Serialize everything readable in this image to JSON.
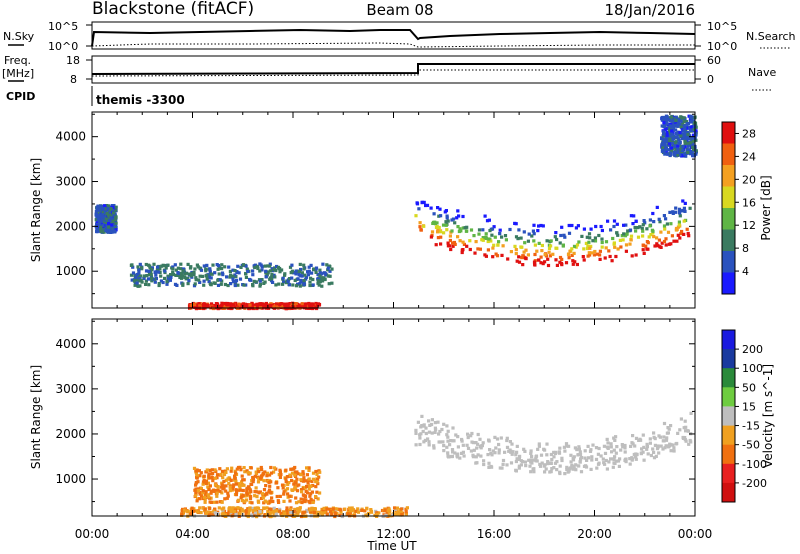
{
  "header": {
    "station": "Blackstone (fitACF)",
    "beam": "Beam 08",
    "date": "18/Jan/2016"
  },
  "ops_panel": {
    "nsky_label": "N.Sky",
    "nsearch_label": "N.Search",
    "noise_ticks": [
      "10^5",
      "10^0"
    ],
    "freq_label_1": "Freq.",
    "freq_label_2": "[MHz]",
    "freq_ticks": [
      "18",
      "8"
    ],
    "nave_label": "Nave",
    "nave_ticks": [
      "60",
      "0"
    ],
    "cpid_label": "CPID",
    "cpid_value": "themis -3300"
  },
  "time_axis": {
    "label": "Time UT",
    "ticks": [
      "00:00",
      "04:00",
      "08:00",
      "12:00",
      "16:00",
      "20:00",
      "00:00"
    ]
  },
  "chart_data": [
    {
      "type": "heatmap",
      "title": "",
      "xlabel": "Time UT",
      "ylabel": "Slant Range [km]",
      "x_ticks": [
        "00:00",
        "04:00",
        "08:00",
        "12:00",
        "16:00",
        "20:00",
        "00:00"
      ],
      "y_ticks": [
        1000,
        2000,
        3000,
        4000
      ],
      "ylim": [
        180,
        4550
      ],
      "colorbar": {
        "label": "Power [dB]",
        "ticks": [
          4,
          8,
          12,
          16,
          20,
          24,
          28
        ],
        "range": [
          0,
          30
        ],
        "colors": [
          "#1a1aff",
          "#2a52be",
          "#3a7a60",
          "#5fb545",
          "#d8d820",
          "#f4a020",
          "#f06010",
          "#e01010"
        ]
      },
      "features": [
        {
          "name": "near-range band",
          "hours": [
            3.8,
            9.0
          ],
          "range_km": [
            200,
            320
          ],
          "power_db": 28
        },
        {
          "name": "main echo band",
          "hours": [
            12.8,
            23.8
          ],
          "range_km": [
            1150,
            2200
          ],
          "power_db": 26
        },
        {
          "name": "early morning patch",
          "hours": [
            0.1,
            0.9
          ],
          "range_km": [
            1900,
            2500
          ],
          "power_db": 6
        },
        {
          "name": "rising echoes",
          "hours": [
            1.5,
            9.5
          ],
          "range_km": [
            700,
            1200
          ],
          "power_db": 8
        },
        {
          "name": "high-altitude patch",
          "hours": [
            22.6,
            24.0
          ],
          "range_km": [
            3600,
            4500
          ],
          "power_db": 6
        }
      ]
    },
    {
      "type": "heatmap",
      "title": "",
      "xlabel": "Time UT",
      "ylabel": "Slant Range [km]",
      "x_ticks": [
        "00:00",
        "04:00",
        "08:00",
        "12:00",
        "16:00",
        "20:00",
        "00:00"
      ],
      "y_ticks": [
        1000,
        2000,
        3000,
        4000
      ],
      "ylim": [
        180,
        4550
      ],
      "colorbar": {
        "label": "Velocity [m s^-1]",
        "ticks": [
          200,
          100,
          50,
          15,
          -15,
          -50,
          -100,
          -200
        ],
        "colors": [
          "#1a1adf",
          "#1a3a9f",
          "#2a8a3a",
          "#6ecc40",
          "#bebebe",
          "#f0a020",
          "#f07010",
          "#e82020",
          "#d01010"
        ]
      },
      "features": [
        {
          "name": "ground scatter band",
          "hours": [
            12.8,
            23.8
          ],
          "range_km": [
            1350,
            2300
          ],
          "velocity_ms": 0
        },
        {
          "name": "westward flow patch",
          "hours": [
            4.0,
            9.0
          ],
          "range_km": [
            500,
            1300
          ],
          "velocity_ms": -60
        },
        {
          "name": "near-range mixed",
          "hours": [
            3.5,
            12.5
          ],
          "range_km": [
            200,
            400
          ],
          "velocity_ms": -40
        }
      ]
    }
  ],
  "colors": {
    "axis": "#000000",
    "ground_scatter": "#bebebe"
  }
}
